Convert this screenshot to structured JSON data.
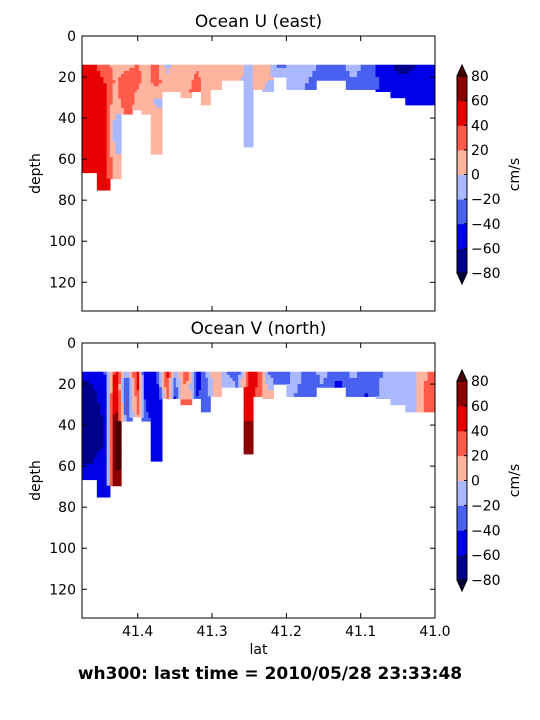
{
  "figure": {
    "suptitle": "wh300: last time = 2010/05/28 23:33:48"
  },
  "colormap": {
    "levels": [
      -80,
      -60,
      -40,
      -20,
      0,
      20,
      40,
      60,
      80
    ],
    "colors": [
      "#00008b",
      "#0000e6",
      "#4a61f0",
      "#aab9ff",
      "#ffb4a0",
      "#ff5a4a",
      "#e60000",
      "#8b0000"
    ],
    "under_color": "#00003c",
    "over_color": "#4a0000",
    "colorbar_label": "cm/s",
    "tick_labels": [
      "−80",
      "−60",
      "−40",
      "−20",
      "0",
      "20",
      "40",
      "60",
      "80"
    ]
  },
  "chart_data": [
    {
      "type": "heatmap",
      "title": "Ocean U (east)",
      "xlabel": "",
      "ylabel": "depth",
      "xlim": [
        41.475,
        41.0
      ],
      "ylim": [
        134,
        0
      ],
      "x_ticks": [
        41.4,
        41.3,
        41.2,
        41.1,
        41.0
      ],
      "x_tick_labels": [],
      "y_ticks": [
        0,
        20,
        40,
        60,
        80,
        100,
        120
      ],
      "y_tick_labels": [
        "0",
        "20",
        "40",
        "60",
        "80",
        "100",
        "120"
      ],
      "units": "cm/s",
      "depth_top": 14,
      "valid_depth": [
        {
          "lat": 41.465,
          "max_depth": 67
        },
        {
          "lat": 41.445,
          "max_depth": 75
        },
        {
          "lat": 41.43,
          "max_depth": 70
        },
        {
          "lat": 41.415,
          "max_depth": 38
        },
        {
          "lat": 41.4,
          "max_depth": 36
        },
        {
          "lat": 41.39,
          "max_depth": 38
        },
        {
          "lat": 41.375,
          "max_depth": 58
        },
        {
          "lat": 41.36,
          "max_depth": 27
        },
        {
          "lat": 41.35,
          "max_depth": 27
        },
        {
          "lat": 41.335,
          "max_depth": 30
        },
        {
          "lat": 41.32,
          "max_depth": 27
        },
        {
          "lat": 41.31,
          "max_depth": 34
        },
        {
          "lat": 41.295,
          "max_depth": 26
        },
        {
          "lat": 41.28,
          "max_depth": 22
        },
        {
          "lat": 41.265,
          "max_depth": 22
        },
        {
          "lat": 41.25,
          "max_depth": 54
        },
        {
          "lat": 41.24,
          "max_depth": 26
        },
        {
          "lat": 41.225,
          "max_depth": 27
        },
        {
          "lat": 41.21,
          "max_depth": 20
        },
        {
          "lat": 41.19,
          "max_depth": 26
        },
        {
          "lat": 41.17,
          "max_depth": 26
        },
        {
          "lat": 41.15,
          "max_depth": 22
        },
        {
          "lat": 41.13,
          "max_depth": 22
        },
        {
          "lat": 41.11,
          "max_depth": 26
        },
        {
          "lat": 41.09,
          "max_depth": 26
        },
        {
          "lat": 41.07,
          "max_depth": 27
        },
        {
          "lat": 41.05,
          "max_depth": 30
        },
        {
          "lat": 41.03,
          "max_depth": 34
        },
        {
          "lat": 41.01,
          "max_depth": 34
        }
      ],
      "columns": [
        {
          "lat": 41.465,
          "values": [
            50,
            50,
            52,
            55,
            55,
            53,
            52,
            50
          ]
        },
        {
          "lat": 41.445,
          "values": [
            30,
            42,
            48,
            50,
            50,
            50,
            50,
            50
          ]
        },
        {
          "lat": 41.43,
          "values": [
            10,
            18,
            10,
            -5,
            -12,
            -5,
            5,
            12
          ]
        },
        {
          "lat": 41.415,
          "values": [
            15,
            30,
            40,
            25
          ]
        },
        {
          "lat": 41.4,
          "values": [
            20,
            30,
            15,
            10
          ]
        },
        {
          "lat": 41.39,
          "values": [
            12,
            10,
            8,
            5
          ]
        },
        {
          "lat": 41.375,
          "values": [
            28,
            30,
            -5,
            10,
            15,
            15
          ]
        },
        {
          "lat": 41.36,
          "values": [
            -8,
            15
          ]
        },
        {
          "lat": 41.35,
          "values": [
            12,
            14
          ]
        },
        {
          "lat": 41.335,
          "values": [
            10,
            12,
            12
          ]
        },
        {
          "lat": 41.32,
          "values": [
            15,
            35
          ]
        },
        {
          "lat": 41.31,
          "values": [
            15,
            12,
            12
          ]
        },
        {
          "lat": 41.295,
          "values": [
            10,
            10
          ]
        },
        {
          "lat": 41.28,
          "values": [
            12,
            14
          ]
        },
        {
          "lat": 41.265,
          "values": [
            10,
            8
          ]
        },
        {
          "lat": 41.25,
          "values": [
            -12,
            -15,
            -15,
            -12,
            -15,
            -15
          ]
        },
        {
          "lat": 41.24,
          "values": [
            12,
            10
          ]
        },
        {
          "lat": 41.225,
          "values": [
            8,
            -5
          ]
        },
        {
          "lat": 41.21,
          "values": [
            -25,
            -5
          ]
        },
        {
          "lat": 41.19,
          "values": [
            -18,
            -10
          ]
        },
        {
          "lat": 41.17,
          "values": [
            -12,
            -25
          ]
        },
        {
          "lat": 41.15,
          "values": [
            -28,
            -30
          ]
        },
        {
          "lat": 41.13,
          "values": [
            -25,
            -30
          ]
        },
        {
          "lat": 41.11,
          "values": [
            -10,
            -28
          ]
        },
        {
          "lat": 41.09,
          "values": [
            -30,
            -25
          ]
        },
        {
          "lat": 41.07,
          "values": [
            -50,
            -45
          ]
        },
        {
          "lat": 41.05,
          "values": [
            -65,
            -50
          ]
        },
        {
          "lat": 41.03,
          "values": [
            -62,
            -48
          ]
        },
        {
          "lat": 41.01,
          "values": [
            -50,
            -45
          ]
        }
      ]
    },
    {
      "type": "heatmap",
      "title": "Ocean V (north)",
      "xlabel": "lat",
      "ylabel": "depth",
      "xlim": [
        41.475,
        41.0
      ],
      "ylim": [
        134,
        0
      ],
      "x_ticks": [
        41.4,
        41.3,
        41.2,
        41.1,
        41.0
      ],
      "x_tick_labels": [
        "41.4",
        "41.3",
        "41.2",
        "41.1",
        "41.0"
      ],
      "y_ticks": [
        0,
        20,
        40,
        60,
        80,
        100,
        120
      ],
      "y_tick_labels": [
        "0",
        "20",
        "40",
        "60",
        "80",
        "100",
        "120"
      ],
      "units": "cm/s",
      "depth_top": 14,
      "valid_depth": [
        {
          "lat": 41.465,
          "max_depth": 67
        },
        {
          "lat": 41.445,
          "max_depth": 75
        },
        {
          "lat": 41.43,
          "max_depth": 70
        },
        {
          "lat": 41.415,
          "max_depth": 38
        },
        {
          "lat": 41.4,
          "max_depth": 36
        },
        {
          "lat": 41.39,
          "max_depth": 38
        },
        {
          "lat": 41.375,
          "max_depth": 58
        },
        {
          "lat": 41.36,
          "max_depth": 27
        },
        {
          "lat": 41.35,
          "max_depth": 27
        },
        {
          "lat": 41.335,
          "max_depth": 30
        },
        {
          "lat": 41.32,
          "max_depth": 27
        },
        {
          "lat": 41.31,
          "max_depth": 34
        },
        {
          "lat": 41.295,
          "max_depth": 26
        },
        {
          "lat": 41.28,
          "max_depth": 22
        },
        {
          "lat": 41.265,
          "max_depth": 22
        },
        {
          "lat": 41.25,
          "max_depth": 54
        },
        {
          "lat": 41.24,
          "max_depth": 26
        },
        {
          "lat": 41.225,
          "max_depth": 27
        },
        {
          "lat": 41.21,
          "max_depth": 20
        },
        {
          "lat": 41.19,
          "max_depth": 26
        },
        {
          "lat": 41.17,
          "max_depth": 26
        },
        {
          "lat": 41.15,
          "max_depth": 22
        },
        {
          "lat": 41.13,
          "max_depth": 22
        },
        {
          "lat": 41.11,
          "max_depth": 26
        },
        {
          "lat": 41.09,
          "max_depth": 26
        },
        {
          "lat": 41.07,
          "max_depth": 27
        },
        {
          "lat": 41.05,
          "max_depth": 30
        },
        {
          "lat": 41.03,
          "max_depth": 34
        },
        {
          "lat": 41.01,
          "max_depth": 34
        }
      ],
      "columns": [
        {
          "lat": 41.465,
          "values": [
            -50,
            -65,
            -70,
            -75,
            -70,
            -65,
            -60,
            -55
          ]
        },
        {
          "lat": 41.445,
          "values": [
            -45,
            -50,
            -55,
            -60,
            -60,
            -55,
            -50,
            -50
          ]
        },
        {
          "lat": 41.43,
          "values": [
            50,
            60,
            70,
            80,
            85,
            85,
            80,
            75
          ]
        },
        {
          "lat": 41.415,
          "values": [
            -20,
            -50,
            -40,
            -30
          ]
        },
        {
          "lat": 41.4,
          "values": [
            55,
            45,
            30,
            20
          ]
        },
        {
          "lat": 41.39,
          "values": [
            -60,
            -50,
            -40,
            -30
          ]
        },
        {
          "lat": 41.375,
          "values": [
            -40,
            -55,
            -60,
            -50,
            -45,
            -50
          ]
        },
        {
          "lat": 41.36,
          "values": [
            45,
            30
          ]
        },
        {
          "lat": 41.35,
          "values": [
            -15,
            -45
          ]
        },
        {
          "lat": 41.335,
          "values": [
            35,
            25,
            30
          ]
        },
        {
          "lat": 41.32,
          "values": [
            -50,
            -40
          ]
        },
        {
          "lat": 41.31,
          "values": [
            -25,
            -35,
            -30
          ]
        },
        {
          "lat": 41.295,
          "values": [
            20,
            10
          ]
        },
        {
          "lat": 41.28,
          "values": [
            -20,
            -10
          ]
        },
        {
          "lat": 41.265,
          "values": [
            -30,
            -20
          ]
        },
        {
          "lat": 41.25,
          "values": [
            40,
            45,
            55,
            60,
            65,
            65
          ]
        },
        {
          "lat": 41.24,
          "values": [
            50,
            35
          ]
        },
        {
          "lat": 41.225,
          "values": [
            -20,
            10
          ]
        },
        {
          "lat": 41.21,
          "values": [
            -40,
            -30
          ]
        },
        {
          "lat": 41.19,
          "values": [
            -10,
            -20
          ]
        },
        {
          "lat": 41.17,
          "values": [
            -25,
            -35
          ]
        },
        {
          "lat": 41.15,
          "values": [
            -15,
            -20
          ]
        },
        {
          "lat": 41.13,
          "values": [
            -40,
            -45
          ]
        },
        {
          "lat": 41.11,
          "values": [
            -15,
            -25
          ]
        },
        {
          "lat": 41.09,
          "values": [
            -30,
            -45
          ]
        },
        {
          "lat": 41.07,
          "values": [
            -20,
            -10
          ]
        },
        {
          "lat": 41.05,
          "values": [
            -12,
            -15
          ]
        },
        {
          "lat": 41.03,
          "values": [
            -10,
            -15
          ]
        },
        {
          "lat": 41.01,
          "values": [
            20,
            40
          ]
        }
      ]
    }
  ]
}
